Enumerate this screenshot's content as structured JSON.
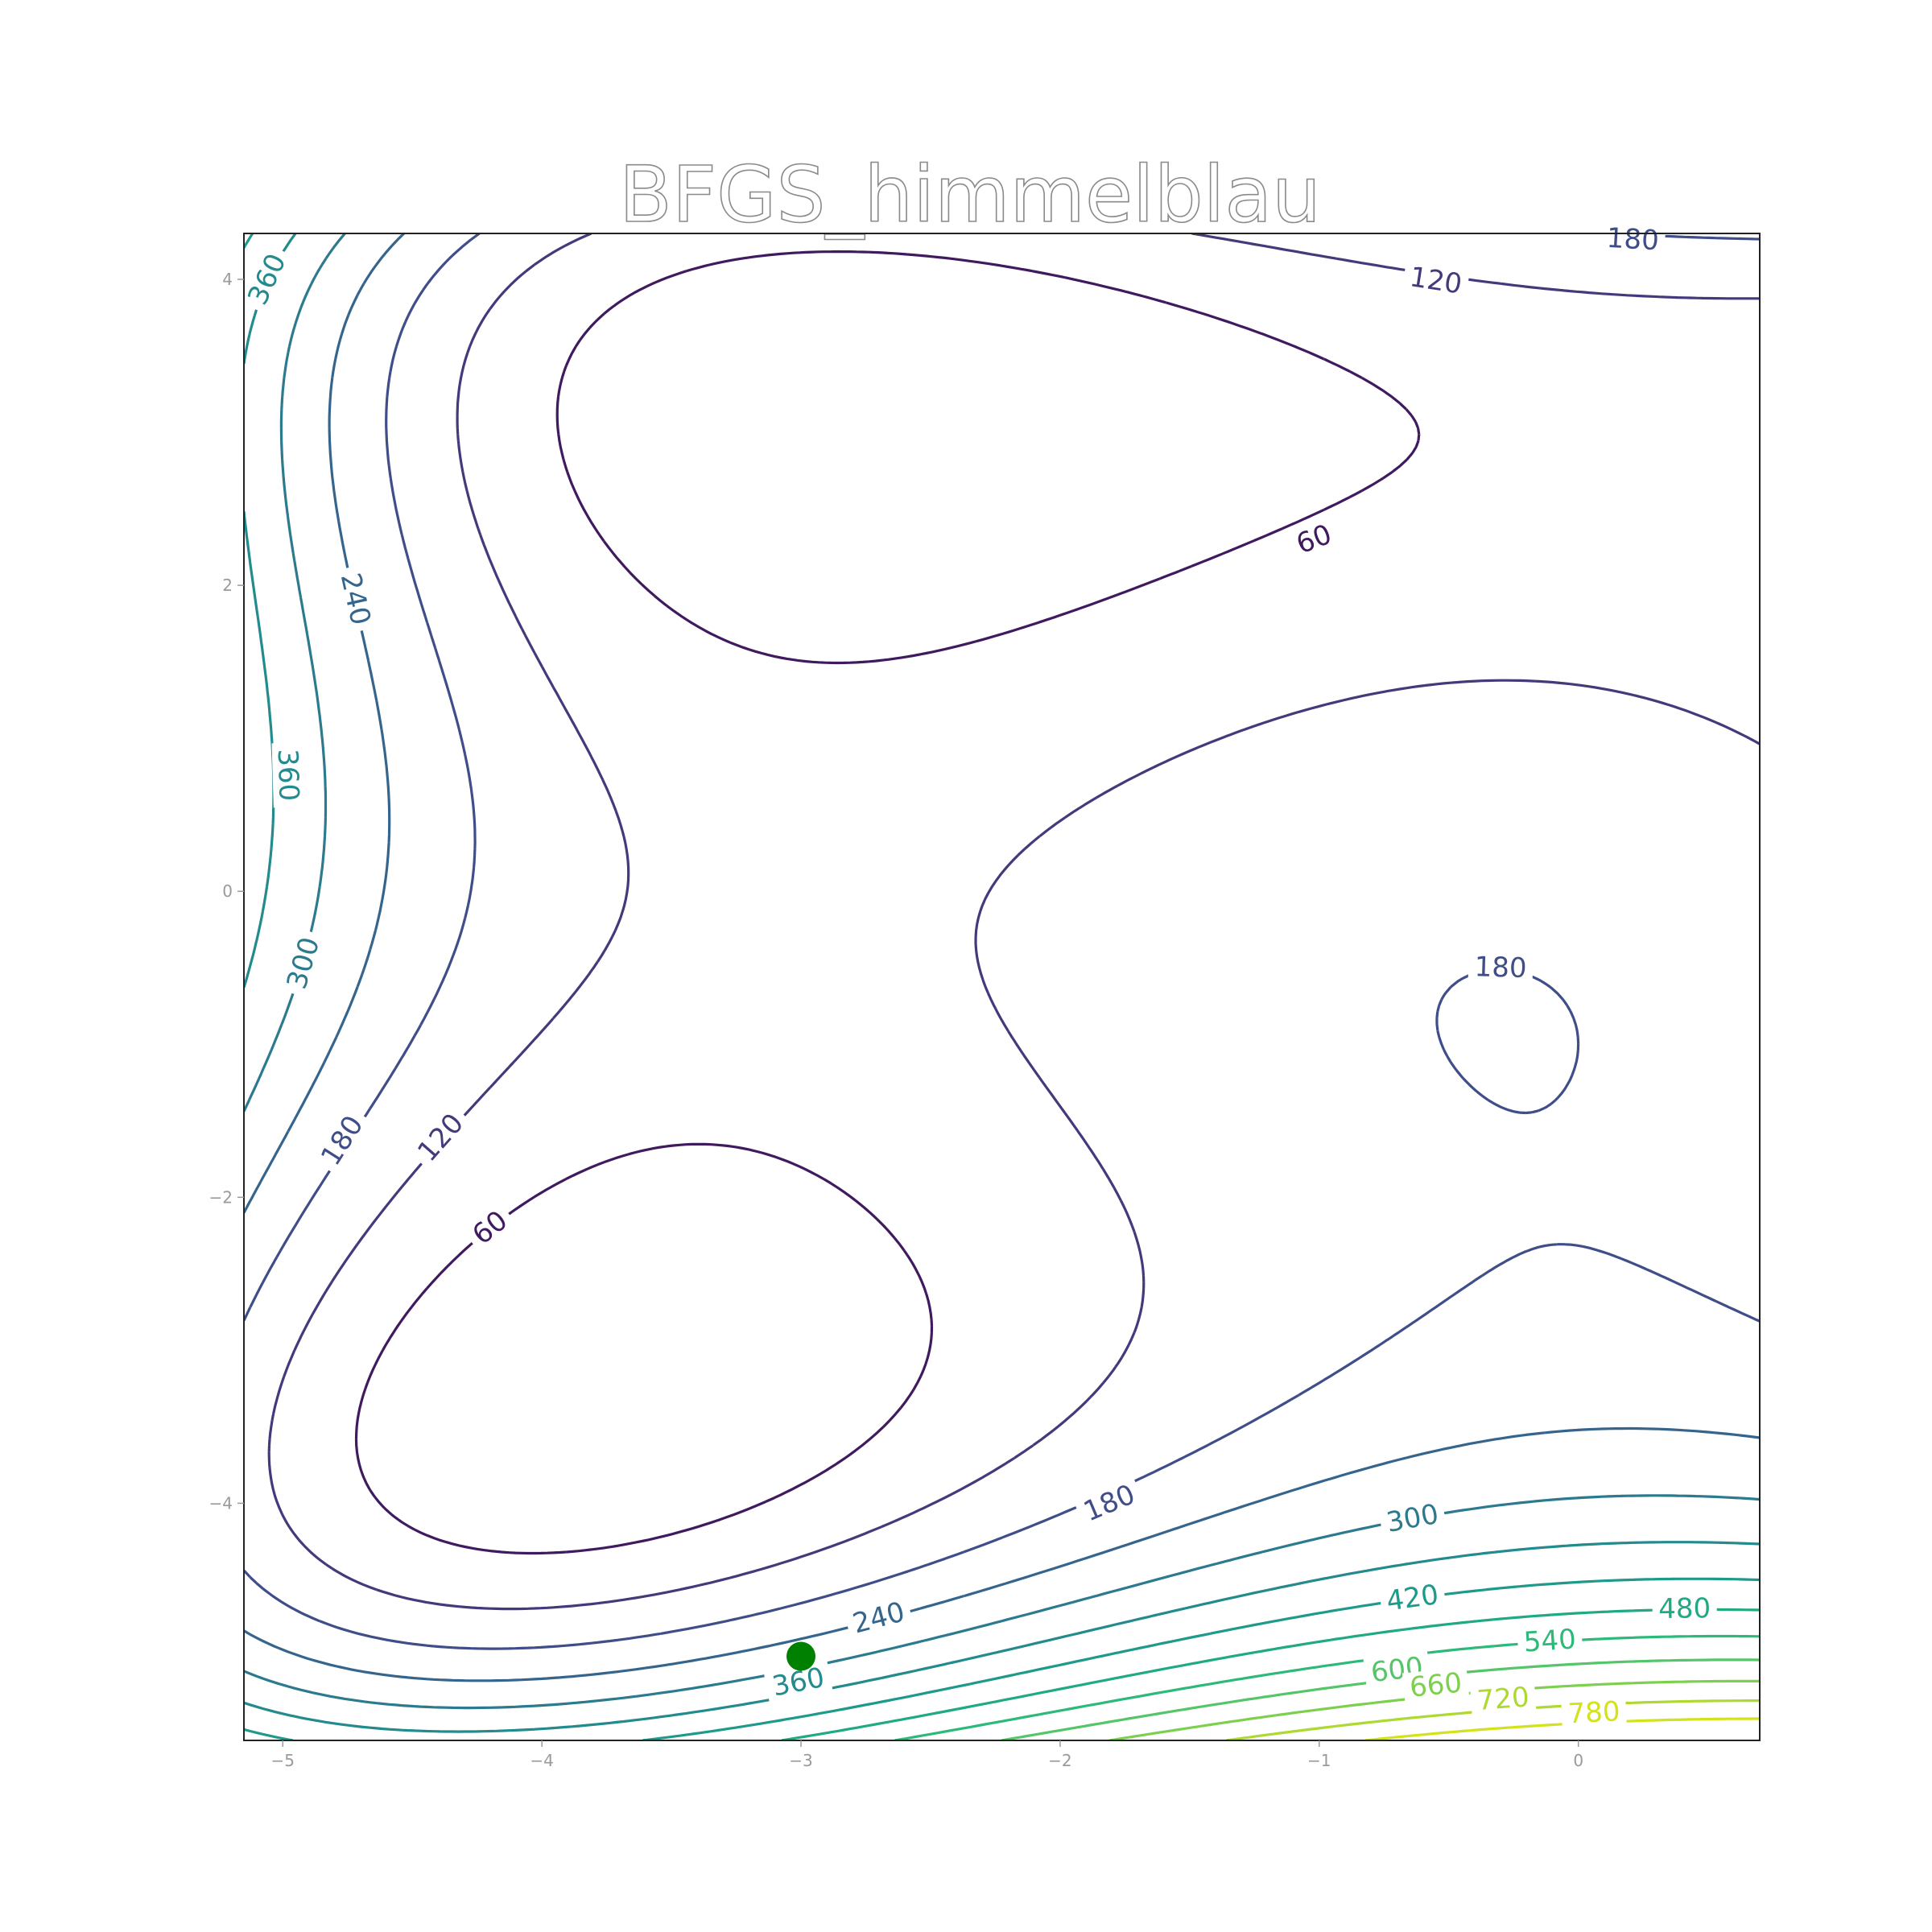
{
  "chart_data": {
    "type": "contour",
    "title": "BFGS_himmelblau",
    "xlabel": "",
    "ylabel": "",
    "function": "himmelblau",
    "xlim": [
      -5.15,
      0.7
    ],
    "ylim": [
      -5.55,
      4.3
    ],
    "x_ticks": [
      {
        "value": -5,
        "label": "−5"
      },
      {
        "value": -4,
        "label": "−4"
      },
      {
        "value": -3,
        "label": "−3"
      },
      {
        "value": -2,
        "label": "−2"
      },
      {
        "value": -1,
        "label": "−1"
      },
      {
        "value": 0,
        "label": "0"
      }
    ],
    "y_ticks": [
      {
        "value": 4,
        "label": "4"
      },
      {
        "value": 2,
        "label": "2"
      },
      {
        "value": 0,
        "label": "0"
      },
      {
        "value": -2,
        "label": "−2"
      },
      {
        "value": -4,
        "label": "−4"
      }
    ],
    "contour_levels": [
      60,
      120,
      180,
      240,
      300,
      360,
      420,
      480,
      540,
      600,
      660,
      720,
      780
    ],
    "colormap": "viridis",
    "level_colors": {
      "60": "#3f1a5f",
      "120": "#433a7b",
      "180": "#3f4e88",
      "240": "#35658d",
      "300": "#2c7a8e",
      "360": "#238a8d",
      "420": "#1f9a8a",
      "480": "#1faa84",
      "540": "#2db97a",
      "600": "#54c568",
      "660": "#7dd04e",
      "720": "#aed931",
      "780": "#d2e21b"
    },
    "contour_labels": [
      {
        "text": "360",
        "x": -5.06,
        "y": 4.0
      },
      {
        "text": "180",
        "x": 0.21,
        "y": 4.26
      },
      {
        "text": "120",
        "x": -0.55,
        "y": 3.99
      },
      {
        "text": "60",
        "x": -1.02,
        "y": 2.3
      },
      {
        "text": "240",
        "x": -4.72,
        "y": 1.91
      },
      {
        "text": "360",
        "x": -4.98,
        "y": 0.76
      },
      {
        "text": "300",
        "x": -4.92,
        "y": -0.47
      },
      {
        "text": "180",
        "x": -0.3,
        "y": -0.5
      },
      {
        "text": "180",
        "x": -4.77,
        "y": -1.63
      },
      {
        "text": "120",
        "x": -4.39,
        "y": -1.61
      },
      {
        "text": "60",
        "x": -4.2,
        "y": -2.2
      },
      {
        "text": "180",
        "x": -1.81,
        "y": -4.0
      },
      {
        "text": "300",
        "x": -0.64,
        "y": -4.1
      },
      {
        "text": "240",
        "x": -2.7,
        "y": -4.75
      },
      {
        "text": "420",
        "x": -0.64,
        "y": -4.62
      },
      {
        "text": "480",
        "x": 0.41,
        "y": -4.69
      },
      {
        "text": "540",
        "x": -0.11,
        "y": -4.9
      },
      {
        "text": "600",
        "x": -0.7,
        "y": -5.09
      },
      {
        "text": "660",
        "x": -0.55,
        "y": -5.19
      },
      {
        "text": "360",
        "x": -3.01,
        "y": -5.17
      },
      {
        "text": "720",
        "x": -0.29,
        "y": -5.28
      },
      {
        "text": "780",
        "x": 0.06,
        "y": -5.37
      }
    ],
    "point": {
      "x": -3.0,
      "y": -5.0,
      "color": "#008000"
    },
    "grid": false,
    "legend": "none"
  }
}
